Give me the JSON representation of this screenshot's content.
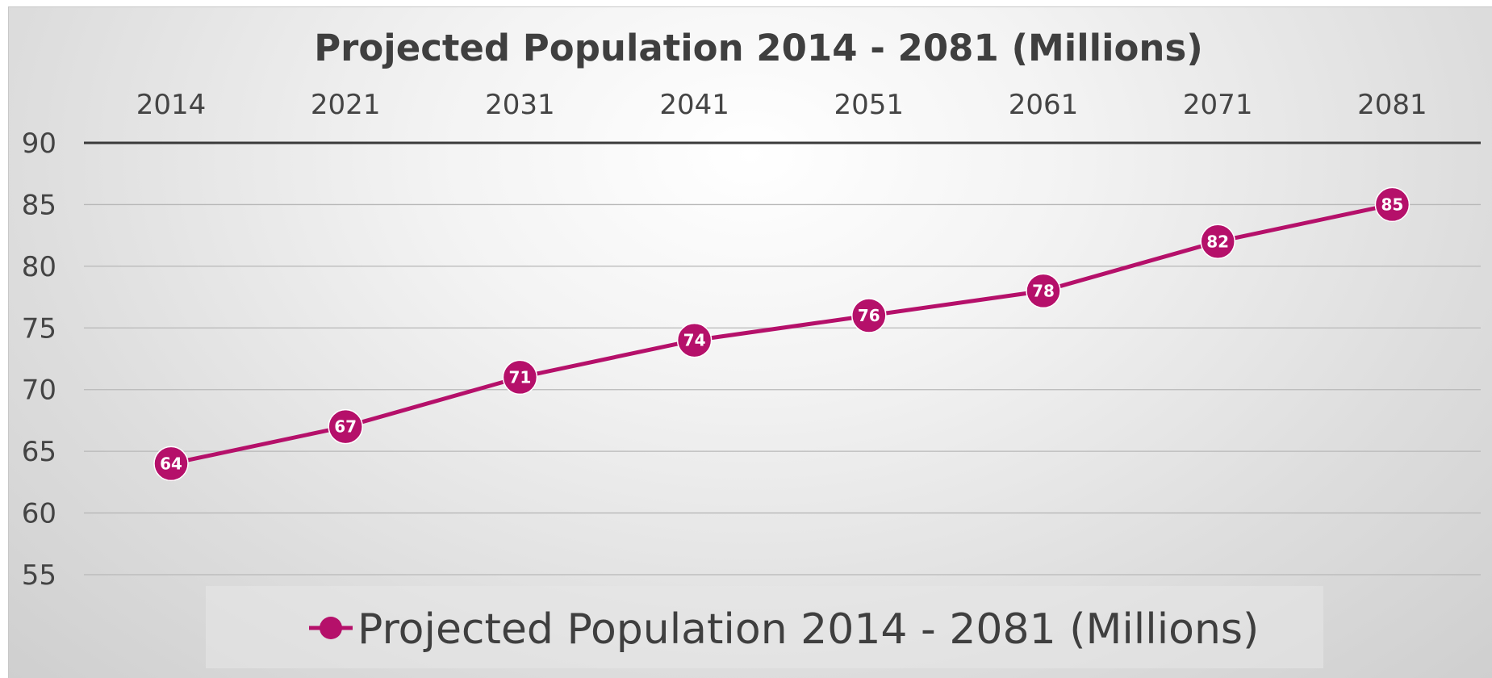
{
  "chart_data": {
    "type": "line",
    "title": "Projected Population 2014 - 2081 (Millions)",
    "categories": [
      "2014",
      "2021",
      "2031",
      "2041",
      "2051",
      "2061",
      "2071",
      "2081"
    ],
    "series": [
      {
        "name": "Projected Population 2014 - 2081 (Millions)",
        "values": [
          64,
          67,
          71,
          74,
          76,
          78,
          82,
          85
        ],
        "color": "#b5106a"
      }
    ],
    "ylim": [
      55,
      90
    ],
    "yticks": [
      90,
      85,
      80,
      75,
      70,
      65,
      60,
      55
    ],
    "x_axis_position": "top",
    "grid": true,
    "legend": "bottom",
    "data_labels": true
  }
}
